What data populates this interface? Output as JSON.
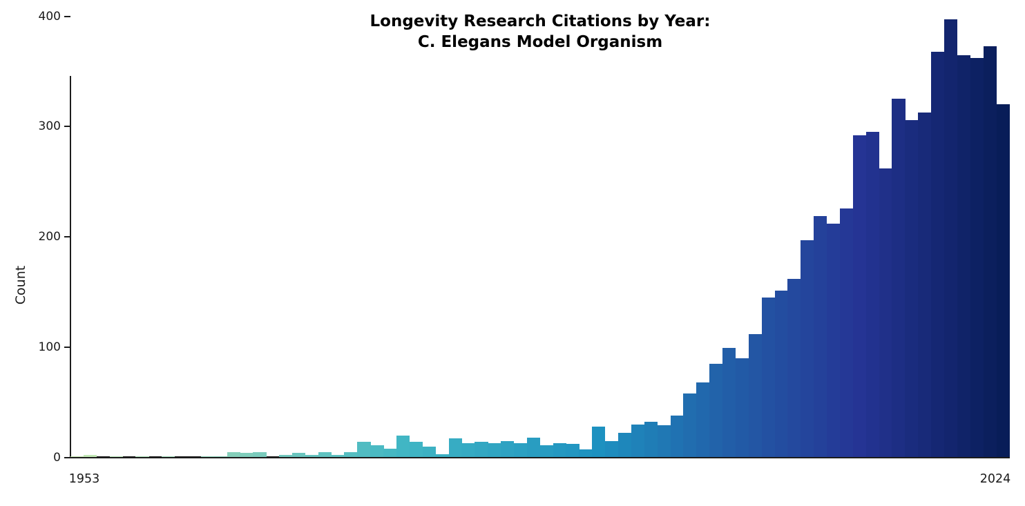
{
  "title": {
    "line1": "Longevity Research Citations by Year:",
    "line2": "C. Elegans Model Organism"
  },
  "axes": {
    "ylabel": "Count",
    "ytick_labels": [
      "0",
      "100",
      "200",
      "300",
      "400"
    ],
    "xtick_labels": [
      "1953",
      "2024"
    ]
  },
  "chart_data": {
    "type": "bar",
    "title": "Longevity Research Citations by Year: C. Elegans Model Organism",
    "xlabel": "",
    "ylabel": "Count",
    "x_start_year": 1953,
    "x_end_year": 2024,
    "ylim": [
      0,
      437
    ],
    "yticks": [
      0,
      100,
      200,
      300,
      400
    ],
    "grid": false,
    "legend": "none",
    "categories": [
      1953,
      1954,
      1955,
      1956,
      1957,
      1958,
      1959,
      1960,
      1961,
      1962,
      1963,
      1964,
      1965,
      1966,
      1967,
      1968,
      1969,
      1970,
      1971,
      1972,
      1973,
      1974,
      1975,
      1976,
      1977,
      1978,
      1979,
      1980,
      1981,
      1982,
      1983,
      1984,
      1985,
      1986,
      1987,
      1988,
      1989,
      1990,
      1991,
      1992,
      1993,
      1994,
      1995,
      1996,
      1997,
      1998,
      1999,
      2000,
      2001,
      2002,
      2003,
      2004,
      2005,
      2006,
      2007,
      2008,
      2009,
      2010,
      2011,
      2012,
      2013,
      2014,
      2015,
      2016,
      2017,
      2018,
      2019,
      2020,
      2021,
      2022,
      2023,
      2024
    ],
    "values": [
      1,
      2,
      0,
      1,
      0,
      1,
      0,
      1,
      0,
      0,
      1,
      1,
      5,
      4,
      5,
      0,
      2,
      4,
      2,
      5,
      2,
      5,
      14,
      11,
      8,
      20,
      14,
      10,
      3,
      17,
      13,
      14,
      13,
      15,
      13,
      18,
      11,
      13,
      12,
      7,
      28,
      15,
      22,
      30,
      32,
      29,
      38,
      58,
      68,
      85,
      99,
      90,
      112,
      145,
      151,
      162,
      197,
      219,
      212,
      226,
      292,
      295,
      262,
      325,
      306,
      313,
      368,
      397,
      365,
      362,
      373,
      320
    ],
    "colormap_stops": [
      {
        "year": 1953,
        "color": "#c7e9b4"
      },
      {
        "year": 1966,
        "color": "#7fcdbb"
      },
      {
        "year": 1978,
        "color": "#41b6c4"
      },
      {
        "year": 1993,
        "color": "#1d91c0"
      },
      {
        "year": 2003,
        "color": "#225ea8"
      },
      {
        "year": 2013,
        "color": "#253494"
      },
      {
        "year": 2024,
        "color": "#081d58"
      }
    ],
    "axis_color": "#1c1c1c",
    "background_color": "#ffffff"
  }
}
